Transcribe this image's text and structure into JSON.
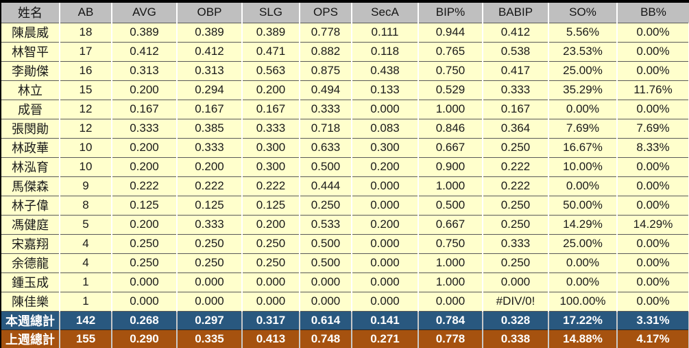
{
  "chart_data": {
    "type": "table",
    "title": "",
    "columns": [
      "姓名",
      "AB",
      "AVG",
      "OBP",
      "SLG",
      "OPS",
      "SecA",
      "BIP%",
      "BABIP",
      "SO%",
      "BB%"
    ],
    "rows": [
      [
        "陳晨威",
        "18",
        "0.389",
        "0.389",
        "0.389",
        "0.778",
        "0.111",
        "0.944",
        "0.412",
        "5.56%",
        "0.00%"
      ],
      [
        "林智平",
        "17",
        "0.412",
        "0.412",
        "0.471",
        "0.882",
        "0.118",
        "0.765",
        "0.538",
        "23.53%",
        "0.00%"
      ],
      [
        "李勛傑",
        "16",
        "0.313",
        "0.313",
        "0.563",
        "0.875",
        "0.438",
        "0.750",
        "0.417",
        "25.00%",
        "0.00%"
      ],
      [
        "林立",
        "15",
        "0.200",
        "0.294",
        "0.200",
        "0.494",
        "0.133",
        "0.529",
        "0.333",
        "35.29%",
        "11.76%"
      ],
      [
        "成晉",
        "12",
        "0.167",
        "0.167",
        "0.167",
        "0.333",
        "0.000",
        "1.000",
        "0.167",
        "0.00%",
        "0.00%"
      ],
      [
        "張閔勛",
        "12",
        "0.333",
        "0.385",
        "0.333",
        "0.718",
        "0.083",
        "0.846",
        "0.364",
        "7.69%",
        "7.69%"
      ],
      [
        "林政華",
        "10",
        "0.200",
        "0.333",
        "0.300",
        "0.633",
        "0.300",
        "0.667",
        "0.250",
        "16.67%",
        "8.33%"
      ],
      [
        "林泓育",
        "10",
        "0.200",
        "0.200",
        "0.300",
        "0.500",
        "0.200",
        "0.900",
        "0.222",
        "10.00%",
        "0.00%"
      ],
      [
        "馬傑森",
        "9",
        "0.222",
        "0.222",
        "0.222",
        "0.444",
        "0.000",
        "1.000",
        "0.222",
        "0.00%",
        "0.00%"
      ],
      [
        "林子偉",
        "8",
        "0.125",
        "0.125",
        "0.125",
        "0.250",
        "0.000",
        "0.500",
        "0.250",
        "50.00%",
        "0.00%"
      ],
      [
        "馮健庭",
        "5",
        "0.200",
        "0.333",
        "0.200",
        "0.533",
        "0.200",
        "0.667",
        "0.250",
        "14.29%",
        "14.29%"
      ],
      [
        "宋嘉翔",
        "4",
        "0.250",
        "0.250",
        "0.250",
        "0.500",
        "0.000",
        "0.750",
        "0.333",
        "25.00%",
        "0.00%"
      ],
      [
        "余德龍",
        "4",
        "0.250",
        "0.250",
        "0.250",
        "0.500",
        "0.000",
        "1.000",
        "0.250",
        "0.00%",
        "0.00%"
      ],
      [
        "鍾玉成",
        "1",
        "0.000",
        "0.000",
        "0.000",
        "0.000",
        "0.000",
        "1.000",
        "0.000",
        "0.00%",
        "0.00%"
      ],
      [
        "陳佳樂",
        "1",
        "0.000",
        "0.000",
        "0.000",
        "0.000",
        "0.000",
        "0.000",
        "#DIV/0!",
        "100.00%",
        "0.00%"
      ]
    ],
    "summary_rows": [
      {
        "label": "本週總計",
        "values": [
          "142",
          "0.268",
          "0.297",
          "0.317",
          "0.614",
          "0.141",
          "0.784",
          "0.328",
          "17.22%",
          "3.31%"
        ],
        "bg_color": "#29587F"
      },
      {
        "label": "上週總計",
        "values": [
          "155",
          "0.290",
          "0.335",
          "0.413",
          "0.748",
          "0.271",
          "0.778",
          "0.338",
          "14.88%",
          "4.17%"
        ],
        "bg_color": "#A6520F"
      }
    ]
  },
  "colors": {
    "header_bg": "#BFBFBF",
    "row_bg": "#FFFFCC",
    "gridline": "#595959",
    "divider": "#FFFFFF",
    "this_week_bg": "#29587F",
    "last_week_bg": "#A6520F",
    "summary_text": "#FFFFFF"
  }
}
